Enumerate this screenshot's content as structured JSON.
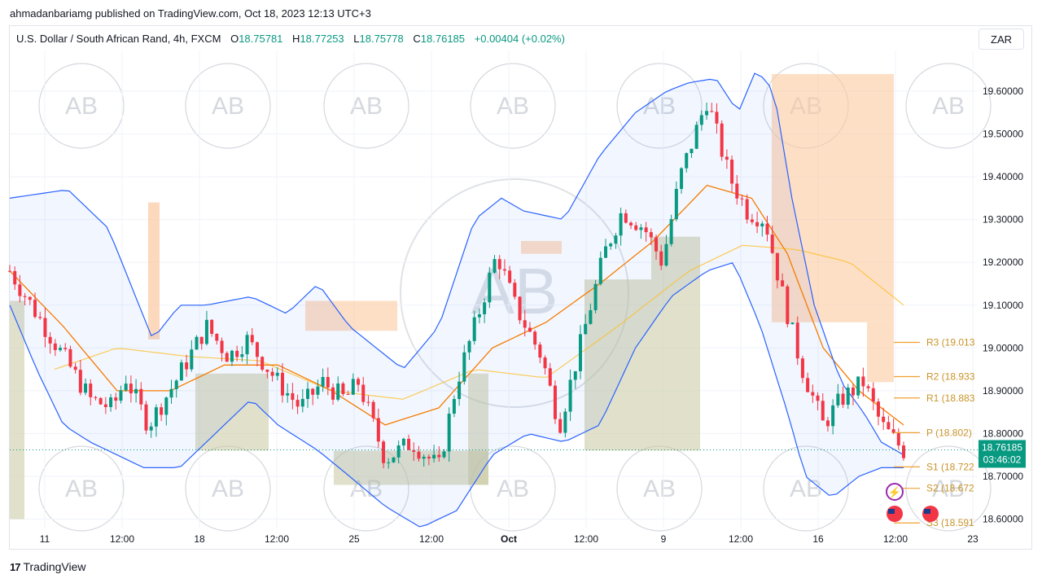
{
  "header": {
    "published": "ahmadanbariamg published on TradingView.com, Oct 18, 2023 12:13 UTC+3"
  },
  "legend": {
    "symbol": "U.S. Dollar / South African Rand, 4h, FXCM",
    "o_label": "O",
    "o_value": "18.75781",
    "h_label": "H",
    "h_value": "18.77253",
    "l_label": "L",
    "l_value": "18.75778",
    "c_label": "C",
    "c_value": "18.76185",
    "change": "+0.00404 (+0.02%)"
  },
  "currency_button": "ZAR",
  "footer": {
    "logo": "17",
    "brand": "TradingView"
  },
  "watermark": "AB",
  "colors": {
    "up": "#089981",
    "down": "#f23645",
    "band": "#2962ff",
    "ema": "#f57c00",
    "sma": "#fbc02d",
    "pivot_line": "#f0a030",
    "grid": "#f0f3fa"
  },
  "chart_data": {
    "type": "candlestick",
    "timeframe": "4h",
    "ylim": [
      18.58,
      19.67
    ],
    "y_ticks": [
      "19.60000",
      "19.50000",
      "19.40000",
      "19.30000",
      "19.20000",
      "19.10000",
      "19.00000",
      "18.90000",
      "18.80000",
      "18.70000",
      "18.60000"
    ],
    "x_ticks": [
      "11",
      "12:00",
      "18",
      "12:00",
      "25",
      "12:00",
      "Oct",
      "12:00",
      "9",
      "12:00",
      "16",
      "12:00",
      "23"
    ],
    "last_price": {
      "value": "18.76185",
      "countdown": "03:46:02"
    },
    "pivots": [
      {
        "label": "R3 (19.013",
        "value": 19.013
      },
      {
        "label": "R2 (18.933",
        "value": 18.933
      },
      {
        "label": "R1 (18.883",
        "value": 18.883
      },
      {
        "label": "P (18.802)",
        "value": 18.802
      },
      {
        "label": "S1 (18.722",
        "value": 18.722
      },
      {
        "label": "S2 (18.672",
        "value": 18.672
      },
      {
        "label": "S3 (18.591",
        "value": 18.591
      }
    ],
    "close_path": [
      [
        0,
        19.18
      ],
      [
        0.03,
        19.08
      ],
      [
        0.06,
        18.98
      ],
      [
        0.09,
        18.88
      ],
      [
        0.115,
        18.86
      ],
      [
        0.13,
        18.93
      ],
      [
        0.155,
        18.82
      ],
      [
        0.185,
        18.92
      ],
      [
        0.22,
        19.05
      ],
      [
        0.245,
        18.98
      ],
      [
        0.265,
        19.02
      ],
      [
        0.3,
        18.92
      ],
      [
        0.325,
        18.86
      ],
      [
        0.35,
        18.92
      ],
      [
        0.375,
        18.88
      ],
      [
        0.39,
        18.92
      ],
      [
        0.42,
        18.74
      ],
      [
        0.45,
        18.78
      ],
      [
        0.48,
        18.72
      ],
      [
        0.5,
        18.92
      ],
      [
        0.52,
        19.05
      ],
      [
        0.545,
        19.22
      ],
      [
        0.565,
        19.1
      ],
      [
        0.595,
        18.98
      ],
      [
        0.615,
        18.82
      ],
      [
        0.64,
        19.02
      ],
      [
        0.665,
        19.22
      ],
      [
        0.685,
        19.32
      ],
      [
        0.71,
        19.28
      ],
      [
        0.73,
        19.2
      ],
      [
        0.75,
        19.4
      ],
      [
        0.78,
        19.58
      ],
      [
        0.805,
        19.4
      ],
      [
        0.825,
        19.32
      ],
      [
        0.845,
        19.3
      ],
      [
        0.865,
        19.12
      ],
      [
        0.885,
        18.96
      ],
      [
        0.91,
        18.82
      ],
      [
        0.93,
        18.88
      ],
      [
        0.955,
        18.92
      ],
      [
        0.975,
        18.82
      ],
      [
        1.0,
        18.76
      ]
    ],
    "upper_band_path": [
      [
        0,
        19.35
      ],
      [
        0.065,
        19.37
      ],
      [
        0.11,
        19.28
      ],
      [
        0.16,
        19.02
      ],
      [
        0.19,
        19.1
      ],
      [
        0.22,
        19.1
      ],
      [
        0.27,
        19.12
      ],
      [
        0.31,
        19.08
      ],
      [
        0.345,
        19.15
      ],
      [
        0.38,
        19.05
      ],
      [
        0.44,
        18.95
      ],
      [
        0.48,
        19.05
      ],
      [
        0.52,
        19.3
      ],
      [
        0.55,
        19.35
      ],
      [
        0.575,
        19.32
      ],
      [
        0.62,
        19.3
      ],
      [
        0.66,
        19.45
      ],
      [
        0.7,
        19.55
      ],
      [
        0.735,
        19.6
      ],
      [
        0.76,
        19.62
      ],
      [
        0.79,
        19.63
      ],
      [
        0.815,
        19.55
      ],
      [
        0.835,
        19.65
      ],
      [
        0.855,
        19.6
      ],
      [
        0.875,
        19.35
      ],
      [
        0.9,
        19.1
      ],
      [
        0.93,
        18.92
      ],
      [
        0.955,
        18.85
      ],
      [
        0.975,
        18.78
      ],
      [
        1.0,
        18.75
      ]
    ],
    "lower_band_path": [
      [
        0,
        19.1
      ],
      [
        0.03,
        18.95
      ],
      [
        0.06,
        18.82
      ],
      [
        0.09,
        18.78
      ],
      [
        0.12,
        18.75
      ],
      [
        0.15,
        18.72
      ],
      [
        0.19,
        18.72
      ],
      [
        0.22,
        18.78
      ],
      [
        0.27,
        18.88
      ],
      [
        0.3,
        18.82
      ],
      [
        0.345,
        18.76
      ],
      [
        0.38,
        18.7
      ],
      [
        0.42,
        18.63
      ],
      [
        0.46,
        18.58
      ],
      [
        0.5,
        18.62
      ],
      [
        0.54,
        18.75
      ],
      [
        0.58,
        18.8
      ],
      [
        0.62,
        18.78
      ],
      [
        0.66,
        18.82
      ],
      [
        0.7,
        19.0
      ],
      [
        0.74,
        19.12
      ],
      [
        0.78,
        19.18
      ],
      [
        0.81,
        19.2
      ],
      [
        0.84,
        19.05
      ],
      [
        0.87,
        18.85
      ],
      [
        0.89,
        18.7
      ],
      [
        0.92,
        18.65
      ],
      [
        0.95,
        18.7
      ],
      [
        0.975,
        18.72
      ],
      [
        1.0,
        18.72
      ]
    ],
    "ema_path": [
      [
        0,
        19.18
      ],
      [
        0.06,
        19.05
      ],
      [
        0.12,
        18.9
      ],
      [
        0.18,
        18.9
      ],
      [
        0.24,
        18.96
      ],
      [
        0.3,
        18.96
      ],
      [
        0.36,
        18.9
      ],
      [
        0.42,
        18.82
      ],
      [
        0.48,
        18.86
      ],
      [
        0.54,
        19.0
      ],
      [
        0.6,
        19.06
      ],
      [
        0.66,
        19.15
      ],
      [
        0.72,
        19.25
      ],
      [
        0.78,
        19.38
      ],
      [
        0.83,
        19.35
      ],
      [
        0.87,
        19.22
      ],
      [
        0.91,
        19.0
      ],
      [
        0.95,
        18.9
      ],
      [
        1.0,
        18.82
      ]
    ],
    "sma_path": [
      [
        0.05,
        18.95
      ],
      [
        0.12,
        19.0
      ],
      [
        0.2,
        18.98
      ],
      [
        0.28,
        18.97
      ],
      [
        0.36,
        18.9
      ],
      [
        0.44,
        18.88
      ],
      [
        0.52,
        18.95
      ],
      [
        0.6,
        18.93
      ],
      [
        0.68,
        19.05
      ],
      [
        0.76,
        19.18
      ],
      [
        0.82,
        19.24
      ],
      [
        0.88,
        19.23
      ],
      [
        0.94,
        19.2
      ],
      [
        1.0,
        19.1
      ]
    ]
  }
}
